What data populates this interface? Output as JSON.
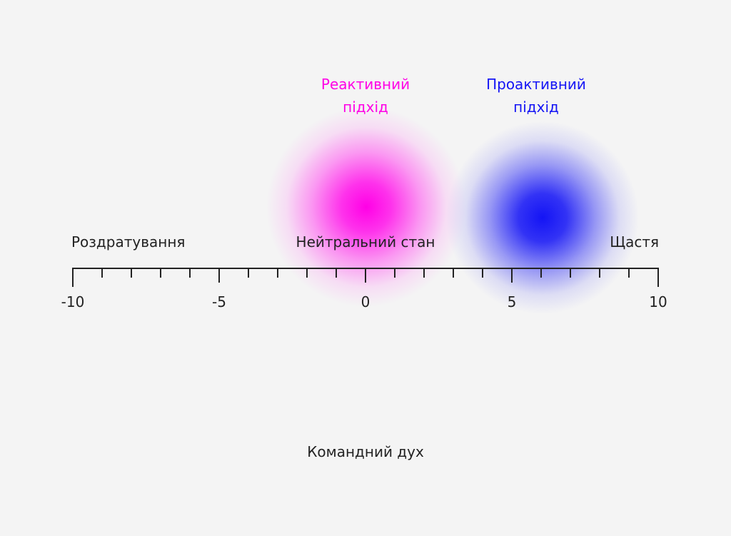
{
  "approaches": [
    {
      "line1": "Реактивний",
      "line2": "підхід",
      "color": "#ff00e6"
    },
    {
      "line1": "Проактивний",
      "line2": "підхід",
      "color": "#1414f5"
    }
  ],
  "scale_labels": {
    "left": "Роздратування",
    "center": "Нейтральний стан",
    "right": "Щастя"
  },
  "axis": {
    "min": -10,
    "max": 10,
    "minor_step": 1,
    "major_labels": [
      "-10",
      "-5",
      "0",
      "5",
      "10"
    ]
  },
  "chart_data": {
    "type": "scatter",
    "xlim": [
      -10,
      10
    ],
    "series": [
      {
        "name": "Реактивний підхід",
        "x": [
          0
        ],
        "color": "#ff00e6"
      },
      {
        "name": "Проактивний підхід",
        "x": [
          6
        ],
        "color": "#1414f5"
      }
    ]
  },
  "footer_title": "Командний дух"
}
